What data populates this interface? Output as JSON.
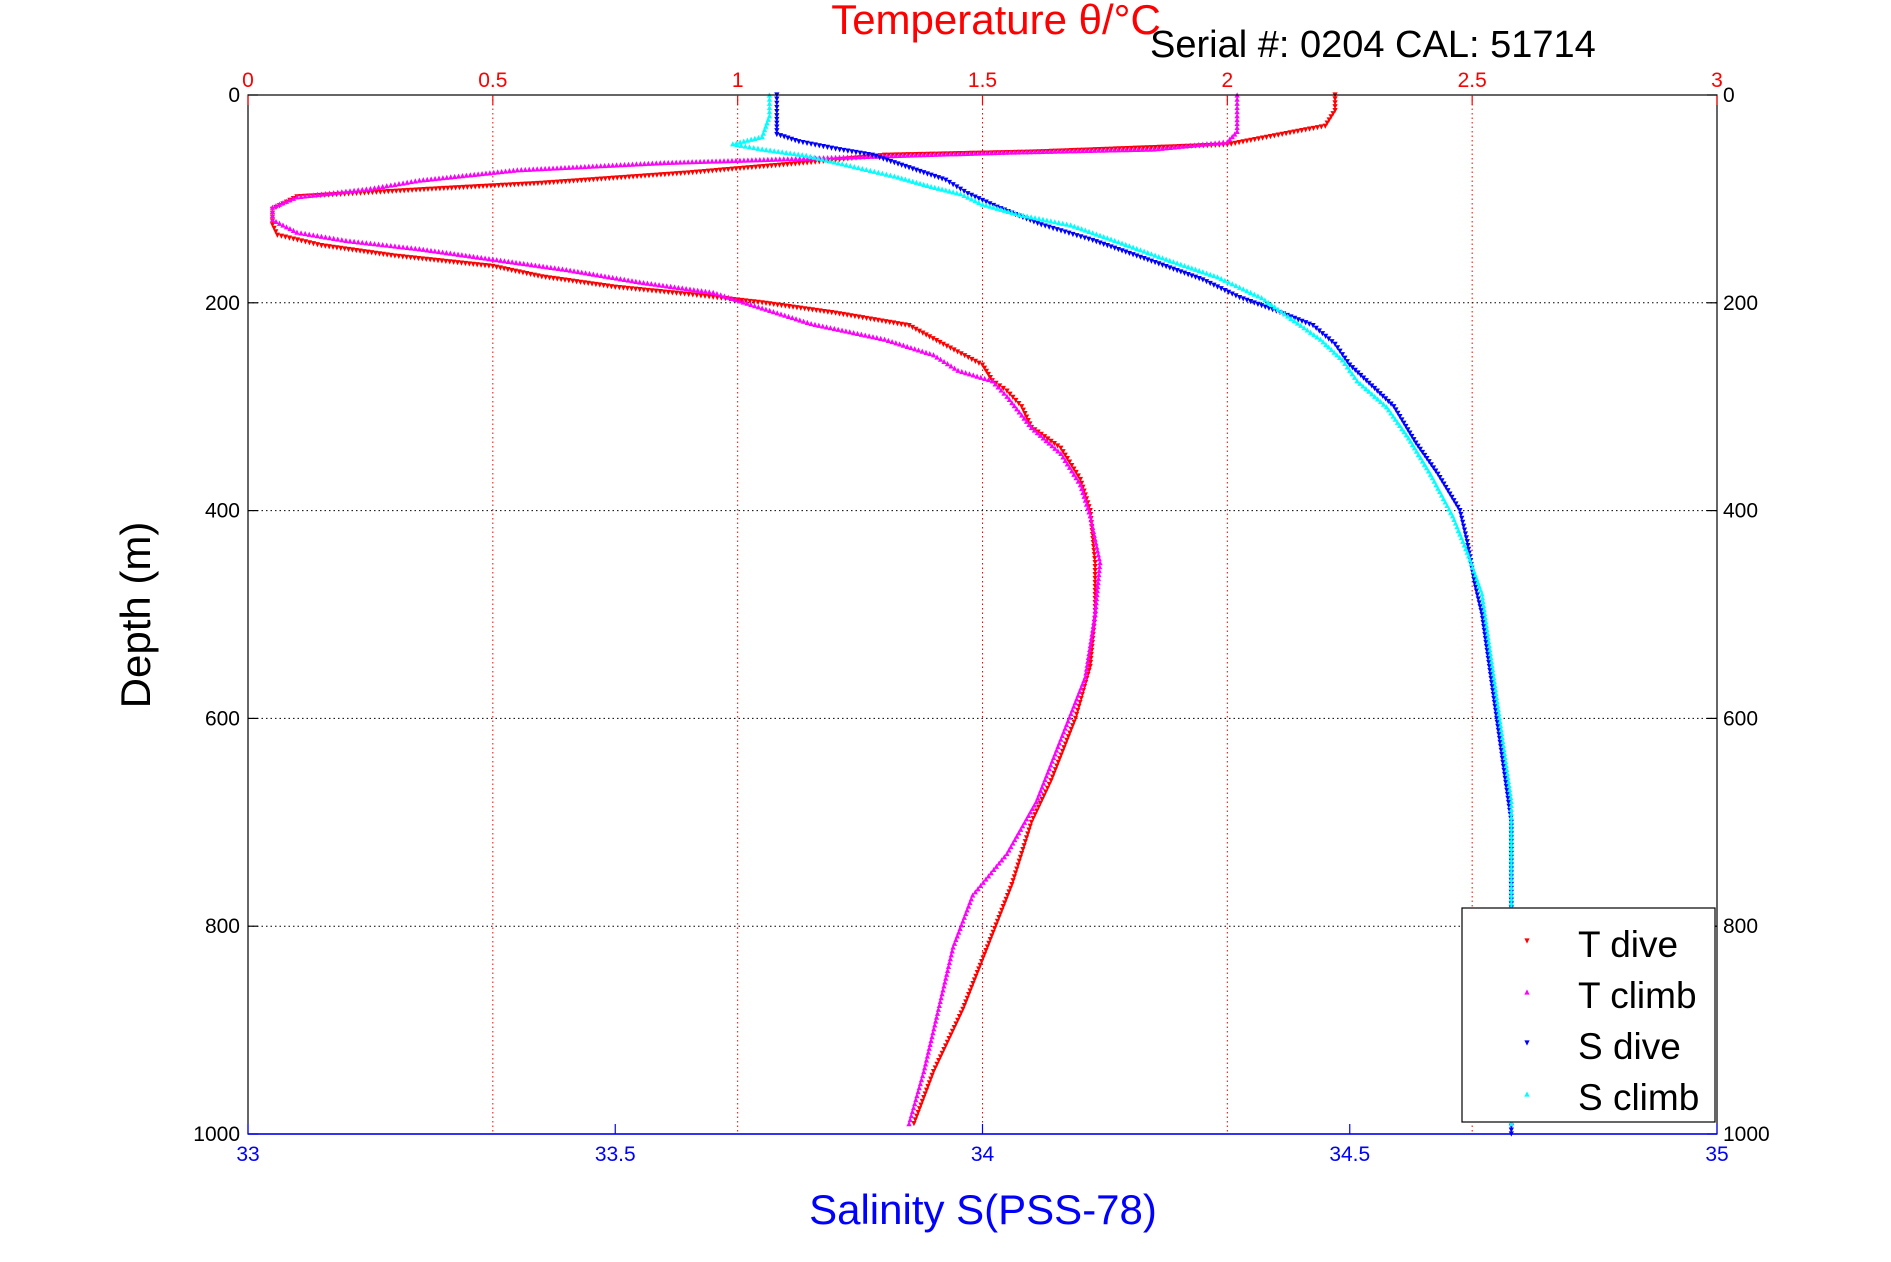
{
  "serial_text": "Serial #: 0204  CAL: 51714",
  "chart_data": {
    "type": "scatter",
    "title": "",
    "top_axis": {
      "label": "Temperature θ/°C",
      "range": [
        0,
        3
      ],
      "ticks": [
        0,
        0.5,
        1,
        1.5,
        2,
        2.5,
        3
      ],
      "tick_labels": [
        "0",
        "0.5",
        "1",
        "1.5",
        "2",
        "2.5",
        "3"
      ],
      "color": "#ff0000"
    },
    "bottom_axis": {
      "label": "Salinity S(PSS-78)",
      "range": [
        33,
        35
      ],
      "ticks": [
        33,
        33.5,
        34,
        34.5,
        35
      ],
      "tick_labels": [
        "33",
        "33.5",
        "34",
        "34.5",
        "35"
      ],
      "color": "#0000ff"
    },
    "y_axis": {
      "label": "Depth (m)",
      "range": [
        0,
        1000
      ],
      "reversed": true,
      "ticks": [
        0,
        200,
        400,
        600,
        800,
        1000
      ],
      "tick_labels": [
        "0",
        "200",
        "400",
        "600",
        "800",
        "1000"
      ]
    },
    "grid": true,
    "legend": {
      "position": "bottom-right",
      "entries": [
        {
          "label": "T dive",
          "color": "#ff0000",
          "marker": "▾"
        },
        {
          "label": "T climb",
          "color": "#ff00ff",
          "marker": "▴"
        },
        {
          "label": "S dive",
          "color": "#0000ff",
          "marker": "▾"
        },
        {
          "label": "S climb",
          "color": "#00ffff",
          "marker": "▴"
        }
      ]
    },
    "series": [
      {
        "name": "T dive",
        "axis": "temperature",
        "color": "#ff0000",
        "marker": "down",
        "points": [
          [
            2.22,
            0
          ],
          [
            2.22,
            15
          ],
          [
            2.2,
            30
          ],
          [
            2.0,
            48
          ],
          [
            1.6,
            55
          ],
          [
            1.3,
            58
          ],
          [
            1.15,
            65
          ],
          [
            0.9,
            75
          ],
          [
            0.6,
            85
          ],
          [
            0.4,
            90
          ],
          [
            0.1,
            98
          ],
          [
            0.05,
            110
          ],
          [
            0.05,
            125
          ],
          [
            0.06,
            135
          ],
          [
            0.15,
            145
          ],
          [
            0.3,
            155
          ],
          [
            0.5,
            165
          ],
          [
            0.6,
            175
          ],
          [
            0.75,
            185
          ],
          [
            0.9,
            192
          ],
          [
            1.05,
            200
          ],
          [
            1.2,
            210
          ],
          [
            1.35,
            222
          ],
          [
            1.42,
            240
          ],
          [
            1.5,
            260
          ],
          [
            1.52,
            275
          ],
          [
            1.55,
            285
          ],
          [
            1.58,
            300
          ],
          [
            1.6,
            320
          ],
          [
            1.66,
            340
          ],
          [
            1.7,
            370
          ],
          [
            1.72,
            400
          ],
          [
            1.73,
            450
          ],
          [
            1.73,
            500
          ],
          [
            1.72,
            550
          ],
          [
            1.69,
            600
          ],
          [
            1.64,
            660
          ],
          [
            1.6,
            700
          ],
          [
            1.56,
            760
          ],
          [
            1.51,
            820
          ],
          [
            1.46,
            880
          ],
          [
            1.4,
            940
          ],
          [
            1.36,
            990
          ]
        ]
      },
      {
        "name": "T climb",
        "axis": "temperature",
        "color": "#ff00ff",
        "marker": "up",
        "points": [
          [
            2.02,
            0
          ],
          [
            2.02,
            20
          ],
          [
            2.02,
            35
          ],
          [
            2.0,
            45
          ],
          [
            1.85,
            52
          ],
          [
            1.55,
            55
          ],
          [
            1.2,
            60
          ],
          [
            0.85,
            65
          ],
          [
            0.55,
            72
          ],
          [
            0.35,
            82
          ],
          [
            0.25,
            90
          ],
          [
            0.1,
            98
          ],
          [
            0.05,
            108
          ],
          [
            0.05,
            120
          ],
          [
            0.1,
            132
          ],
          [
            0.2,
            140
          ],
          [
            0.35,
            148
          ],
          [
            0.5,
            158
          ],
          [
            0.65,
            168
          ],
          [
            0.8,
            180
          ],
          [
            0.95,
            190
          ],
          [
            1.05,
            205
          ],
          [
            1.15,
            220
          ],
          [
            1.3,
            235
          ],
          [
            1.4,
            250
          ],
          [
            1.45,
            265
          ],
          [
            1.52,
            275
          ],
          [
            1.55,
            290
          ],
          [
            1.6,
            320
          ],
          [
            1.66,
            345
          ],
          [
            1.7,
            375
          ],
          [
            1.72,
            405
          ],
          [
            1.74,
            450
          ],
          [
            1.73,
            500
          ],
          [
            1.71,
            560
          ],
          [
            1.66,
            620
          ],
          [
            1.61,
            680
          ],
          [
            1.55,
            730
          ],
          [
            1.48,
            770
          ],
          [
            1.44,
            820
          ],
          [
            1.41,
            880
          ],
          [
            1.38,
            940
          ],
          [
            1.35,
            990
          ]
        ]
      },
      {
        "name": "S dive",
        "axis": "salinity",
        "color": "#0000ff",
        "marker": "down",
        "points": [
          [
            33.72,
            0
          ],
          [
            33.72,
            20
          ],
          [
            33.72,
            38
          ],
          [
            33.75,
            45
          ],
          [
            33.8,
            52
          ],
          [
            33.85,
            58
          ],
          [
            33.9,
            70
          ],
          [
            33.95,
            82
          ],
          [
            33.98,
            95
          ],
          [
            34.02,
            108
          ],
          [
            34.08,
            125
          ],
          [
            34.15,
            140
          ],
          [
            34.23,
            160
          ],
          [
            34.3,
            178
          ],
          [
            34.35,
            195
          ],
          [
            34.4,
            208
          ],
          [
            34.45,
            222
          ],
          [
            34.48,
            240
          ],
          [
            34.5,
            260
          ],
          [
            34.53,
            280
          ],
          [
            34.56,
            300
          ],
          [
            34.59,
            335
          ],
          [
            34.62,
            365
          ],
          [
            34.65,
            400
          ],
          [
            34.66,
            430
          ],
          [
            34.67,
            470
          ],
          [
            34.68,
            500
          ],
          [
            34.69,
            550
          ],
          [
            34.7,
            600
          ],
          [
            34.71,
            650
          ],
          [
            34.72,
            700
          ],
          [
            34.72,
            760
          ],
          [
            34.72,
            820
          ],
          [
            34.72,
            880
          ],
          [
            34.72,
            940
          ],
          [
            34.72,
            1000
          ]
        ]
      },
      {
        "name": "S climb",
        "axis": "salinity",
        "color": "#00ffff",
        "marker": "up",
        "points": [
          [
            33.71,
            0
          ],
          [
            33.71,
            20
          ],
          [
            33.7,
            40
          ],
          [
            33.66,
            47
          ],
          [
            33.7,
            52
          ],
          [
            33.76,
            58
          ],
          [
            33.82,
            68
          ],
          [
            33.88,
            78
          ],
          [
            33.93,
            88
          ],
          [
            33.97,
            95
          ],
          [
            34.0,
            105
          ],
          [
            34.05,
            115
          ],
          [
            34.12,
            125
          ],
          [
            34.18,
            140
          ],
          [
            34.25,
            158
          ],
          [
            34.32,
            175
          ],
          [
            34.38,
            195
          ],
          [
            34.42,
            215
          ],
          [
            34.46,
            235
          ],
          [
            34.49,
            255
          ],
          [
            34.51,
            275
          ],
          [
            34.55,
            300
          ],
          [
            34.58,
            330
          ],
          [
            34.61,
            365
          ],
          [
            34.64,
            405
          ],
          [
            34.66,
            440
          ],
          [
            34.68,
            480
          ],
          [
            34.69,
            530
          ],
          [
            34.7,
            580
          ],
          [
            34.71,
            630
          ],
          [
            34.72,
            680
          ],
          [
            34.72,
            740
          ],
          [
            34.72,
            800
          ],
          [
            34.72,
            860
          ],
          [
            34.72,
            920
          ],
          [
            34.72,
            990
          ]
        ]
      }
    ]
  }
}
